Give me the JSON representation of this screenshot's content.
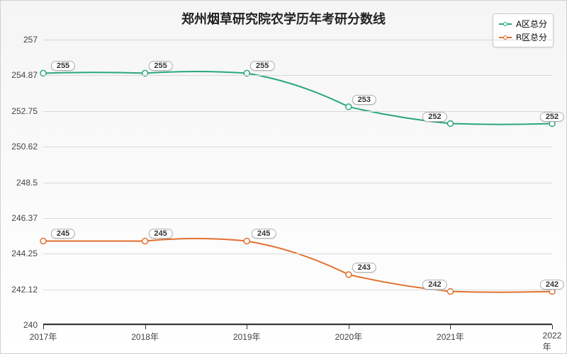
{
  "chart": {
    "type": "line",
    "title": "郑州烟草研究院农学历年考研分数线",
    "title_fontsize": 18,
    "title_color": "#222222",
    "background_gradient_top": "#f5f5f5",
    "background_gradient_bottom": "#ffffff",
    "border_color": "#d0d0d0",
    "grid_color": "#d9d9d9",
    "axis_line_color": "#333333",
    "tick_label_color": "#444444",
    "tick_fontsize": 12,
    "xlim": [
      2017,
      2022
    ],
    "ylim": [
      240,
      257
    ],
    "ytick_values": [
      240,
      242.12,
      244.25,
      246.37,
      248.5,
      250.62,
      252.75,
      254.87,
      257
    ],
    "ytick_labels": [
      "240",
      "242.12",
      "244.25",
      "246.37",
      "248.5",
      "250.62",
      "252.75",
      "254.87",
      "257"
    ],
    "xtick_values": [
      2017,
      2018,
      2019,
      2020,
      2021,
      2022
    ],
    "xtick_labels": [
      "2017年",
      "2018年",
      "2019年",
      "2020年",
      "2021年",
      "2022年"
    ],
    "series": [
      {
        "name": "A区总分",
        "color": "#2aa77f",
        "line_width": 2,
        "marker_fill": "#ffffff",
        "marker_radius": 4,
        "x": [
          2017,
          2018,
          2019,
          2020,
          2021,
          2022
        ],
        "y": [
          255,
          255,
          255,
          253,
          252,
          252
        ],
        "labels": [
          "255",
          "255",
          "255",
          "253",
          "252",
          "252"
        ],
        "label_offset_x": [
          28,
          22,
          22,
          22,
          -22,
          0
        ],
        "label_offset_y": [
          -10,
          -10,
          -10,
          -10,
          -10,
          -10
        ],
        "spline_mid_y": [
          255.1,
          255.2,
          254.5,
          252.3,
          251.9
        ]
      },
      {
        "name": "B区总分",
        "color": "#e1702d",
        "line_width": 2,
        "marker_fill": "#ffffff",
        "marker_radius": 4,
        "x": [
          2017,
          2018,
          2019,
          2020,
          2021,
          2022
        ],
        "y": [
          245,
          245,
          245,
          243,
          242,
          242
        ],
        "labels": [
          "245",
          "245",
          "245",
          "243",
          "242",
          "242"
        ],
        "label_offset_x": [
          28,
          22,
          24,
          22,
          -22,
          0
        ],
        "label_offset_y": [
          -10,
          -10,
          -10,
          -10,
          -10,
          -10
        ],
        "spline_mid_y": [
          245.0,
          245.3,
          244.5,
          242.3,
          241.9
        ]
      }
    ],
    "legend": {
      "position": "top-right",
      "items": [
        "A区总分",
        "B区总分"
      ]
    },
    "data_label_bg": "#ffffff",
    "data_label_border": "#b0b0b0",
    "data_label_fontsize": 11
  }
}
